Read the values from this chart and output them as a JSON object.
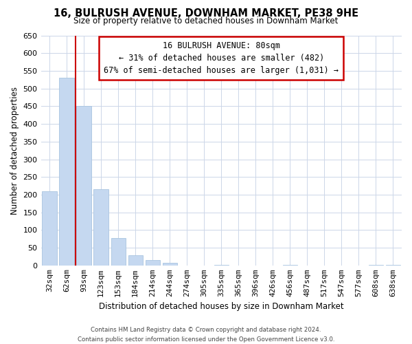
{
  "title": "16, BULRUSH AVENUE, DOWNHAM MARKET, PE38 9HE",
  "subtitle": "Size of property relative to detached houses in Downham Market",
  "xlabel": "Distribution of detached houses by size in Downham Market",
  "ylabel": "Number of detached properties",
  "bar_labels": [
    "32sqm",
    "62sqm",
    "93sqm",
    "123sqm",
    "153sqm",
    "184sqm",
    "214sqm",
    "244sqm",
    "274sqm",
    "305sqm",
    "335sqm",
    "365sqm",
    "396sqm",
    "426sqm",
    "456sqm",
    "487sqm",
    "517sqm",
    "547sqm",
    "577sqm",
    "608sqm",
    "638sqm"
  ],
  "bar_values": [
    210,
    530,
    450,
    215,
    78,
    28,
    15,
    8,
    0,
    0,
    2,
    0,
    0,
    0,
    1,
    0,
    0,
    0,
    0,
    1,
    1
  ],
  "bar_color": "#c5d8f0",
  "bar_edge_color": "#a8c4e0",
  "vline_x": 1.5,
  "vline_color": "#cc0000",
  "annotation_title": "16 BULRUSH AVENUE: 80sqm",
  "annotation_line1": "← 31% of detached houses are smaller (482)",
  "annotation_line2": "67% of semi-detached houses are larger (1,031) →",
  "annotation_box_color": "#ffffff",
  "annotation_box_edge": "#cc0000",
  "ylim": [
    0,
    650
  ],
  "yticks": [
    0,
    50,
    100,
    150,
    200,
    250,
    300,
    350,
    400,
    450,
    500,
    550,
    600,
    650
  ],
  "footer_line1": "Contains HM Land Registry data © Crown copyright and database right 2024.",
  "footer_line2": "Contains public sector information licensed under the Open Government Licence v3.0.",
  "background_color": "#ffffff",
  "grid_color": "#ccd6e8"
}
